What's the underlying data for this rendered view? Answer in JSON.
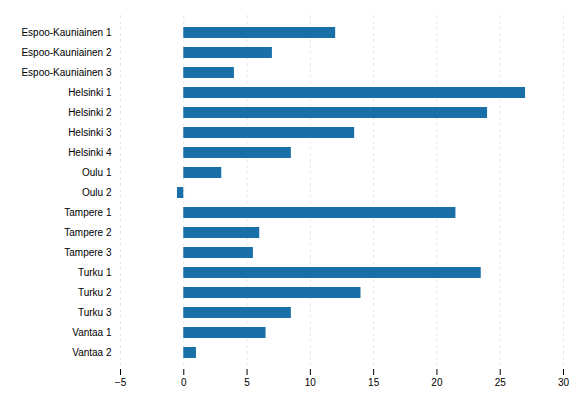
{
  "chart_data": {
    "type": "bar",
    "orientation": "horizontal",
    "categories": [
      "Espoo-Kauniainen 1",
      "Espoo-Kauniainen 2",
      "Espoo-Kauniainen 3",
      "Helsinki 1",
      "Helsinki 2",
      "Helsinki 3",
      "Helsinki 4",
      "Oulu 1",
      "Oulu 2",
      "Tampere 1",
      "Tampere 2",
      "Tampere 3",
      "Turku 1",
      "Turku 2",
      "Turku 3",
      "Vantaa 1",
      "Vantaa 2"
    ],
    "values": [
      12.0,
      7.0,
      4.0,
      27.0,
      24.0,
      13.5,
      8.5,
      3.0,
      -0.5,
      21.5,
      6.0,
      5.5,
      23.5,
      14.0,
      8.5,
      6.5,
      1.0
    ],
    "color": "#1a6fa8",
    "xlim": [
      -5,
      30
    ],
    "xticks": [
      -5,
      0,
      5,
      10,
      15,
      20,
      25,
      30
    ],
    "grid": true
  }
}
